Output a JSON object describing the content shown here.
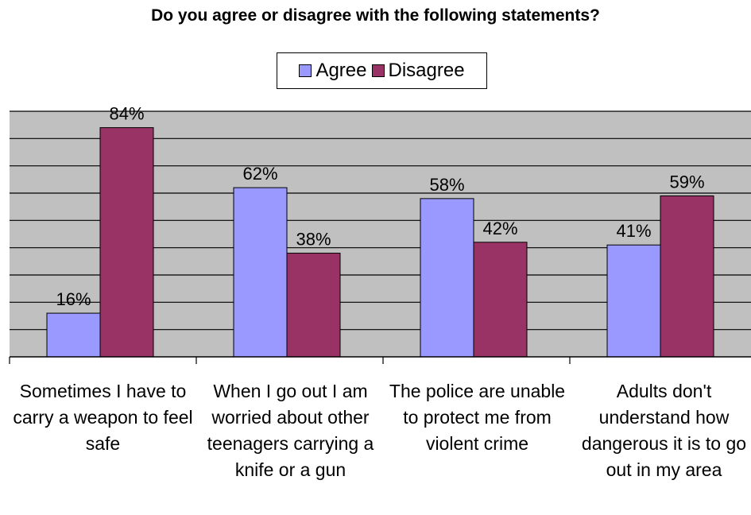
{
  "chart_data": {
    "type": "bar",
    "title": "Do you agree or disagree with the following statements?",
    "categories": [
      "Sometimes I have to carry a weapon to feel safe",
      "When I go out I am worried about other teenagers carrying a knife or a gun",
      "The police are unable to protect me from violent crime",
      "Adults don't understand how dangerous it is to go out in my area"
    ],
    "series": [
      {
        "name": "Agree",
        "values": [
          16,
          62,
          58,
          41
        ],
        "labels": [
          "16%",
          "62%",
          "58%",
          "41%"
        ]
      },
      {
        "name": "Disagree",
        "values": [
          84,
          38,
          42,
          59
        ],
        "labels": [
          "84%",
          "38%",
          "42%",
          "59%"
        ]
      }
    ],
    "ylim": [
      0,
      90
    ],
    "grid": true,
    "legend_position": "top-center",
    "colors": {
      "agree": "#9999ff",
      "disagree": "#993366",
      "plot_background": "#c0c0c0",
      "gridline": "#000000"
    }
  }
}
